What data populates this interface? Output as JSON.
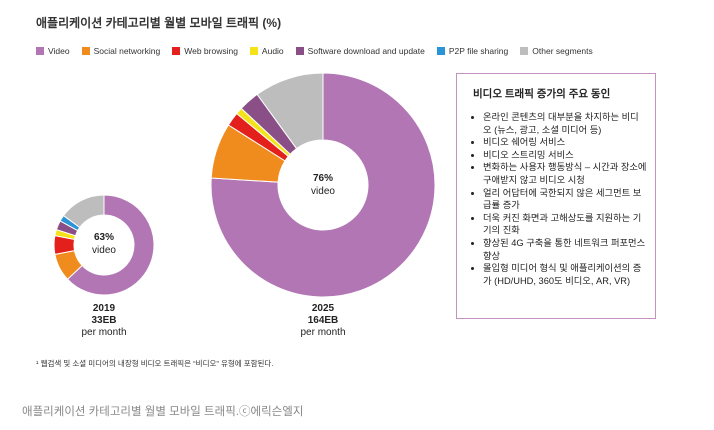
{
  "title": "애플리케이션 카테고리별 월별 모바일 트래픽 (%)",
  "legend": [
    {
      "label": "Video",
      "color": "#b276b5"
    },
    {
      "label": "Social networking",
      "color": "#f08c1e"
    },
    {
      "label": "Web browsing",
      "color": "#e3201b"
    },
    {
      "label": "Audio",
      "color": "#f4e318"
    },
    {
      "label": "Software download and update",
      "color": "#8a4f86"
    },
    {
      "label": "P2P file sharing",
      "color": "#2a94d6"
    },
    {
      "label": "Other segments",
      "color": "#bdbdbd"
    }
  ],
  "chart_data": [
    {
      "type": "pie",
      "subtype": "donut",
      "categories": [
        "Video",
        "Social networking",
        "Web browsing",
        "Audio",
        "Software download and update",
        "P2P file sharing",
        "Other segments"
      ],
      "values": [
        63,
        9,
        6,
        2,
        3,
        2,
        15
      ],
      "center_label": {
        "pct": "63%",
        "text": "video"
      },
      "year": "2019",
      "volume": "33EB",
      "unit": "per month"
    },
    {
      "type": "pie",
      "subtype": "donut",
      "categories": [
        "Video",
        "Social networking",
        "Web browsing",
        "Audio",
        "Software download and update",
        "P2P file sharing",
        "Other segments"
      ],
      "values": [
        76,
        8,
        2,
        1,
        3,
        0,
        10
      ],
      "center_label": {
        "pct": "76%",
        "text": "video"
      },
      "year": "2025",
      "volume": "164EB",
      "unit": "per month"
    }
  ],
  "drivers": {
    "heading": "비디오 트래픽 증가의 주요 동인",
    "items": [
      "온라인 콘텐츠의 대부분을 차지하는 비디오 (뉴스, 광고, 소셜 미디어 등)",
      "비디오 쉐어링 서비스",
      "비디오 스트리밍 서비스",
      "변화하는 사용자 행동방식 – 시간과 장소에 구애받지 않고 비디오 시청",
      "얼리 어답터에 국한되지 않은 세그먼트 보급률 증가",
      "더욱 커진 화면과 고해상도를 지원하는 기기의 진화",
      "향상된 4G 구축을 통한 네트워크 퍼포먼스 향상",
      "몰입형 미디어 형식 및 애플리케이션의 증가 (HD/UHD, 360도 비디오, AR, VR)"
    ]
  },
  "footnote": "¹ 웹검색 및 소셜 미디어의 내장형 비디오 트래픽은 “비디오” 유형에 포함된다.",
  "caption": "애플리케이션 카테고리별 월별 모바일 트래픽.ⓒ에릭슨엘지"
}
